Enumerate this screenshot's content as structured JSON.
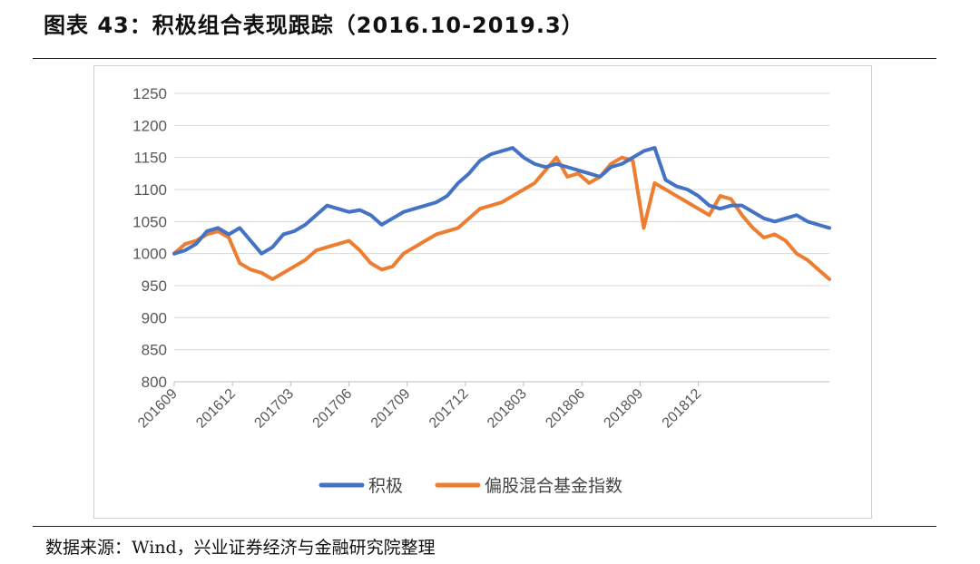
{
  "header": {
    "title": "图表 43：积极组合表现跟踪（2016.10-2019.3）"
  },
  "footer": {
    "source": "数据来源：Wind，兴业证券经济与金融研究院整理"
  },
  "chart_data": {
    "type": "line",
    "title": "",
    "xlabel": "",
    "ylabel": "",
    "ylim": [
      800,
      1250
    ],
    "yticks": [
      800,
      850,
      900,
      950,
      1000,
      1050,
      1100,
      1150,
      1200,
      1250
    ],
    "xtick_labels": [
      "201609",
      "201612",
      "201703",
      "201706",
      "201709",
      "201712",
      "201803",
      "201806",
      "201809",
      "201812"
    ],
    "x_index_range": [
      0,
      30
    ],
    "grid": "horizontal",
    "legend": "bottom",
    "x": [
      0,
      0.5,
      1,
      1.5,
      2,
      2.5,
      3,
      3.5,
      4,
      4.5,
      5,
      5.5,
      6,
      6.5,
      7,
      7.5,
      8,
      8.5,
      9,
      9.5,
      10,
      10.5,
      11,
      11.5,
      12,
      12.5,
      13,
      13.5,
      14,
      14.5,
      15,
      15.5,
      16,
      16.5,
      17,
      17.5,
      18,
      18.5,
      19,
      19.5,
      20,
      20.5,
      21,
      21.5,
      22,
      22.5,
      23,
      23.5,
      24,
      24.5,
      25,
      25.5,
      26,
      26.5,
      27,
      27.5,
      28,
      28.5,
      29,
      29.5,
      30
    ],
    "series": [
      {
        "name": "积极",
        "color": "#4472C4",
        "values": [
          1000,
          1005,
          1015,
          1035,
          1040,
          1030,
          1040,
          1020,
          1000,
          1010,
          1030,
          1035,
          1045,
          1060,
          1075,
          1070,
          1065,
          1068,
          1060,
          1045,
          1055,
          1065,
          1070,
          1075,
          1080,
          1090,
          1110,
          1125,
          1145,
          1155,
          1160,
          1165,
          1150,
          1140,
          1135,
          1140,
          1135,
          1130,
          1125,
          1120,
          1135,
          1140,
          1150,
          1160,
          1165,
          1115,
          1105,
          1100,
          1090,
          1075,
          1070,
          1075,
          1075,
          1065,
          1055,
          1050,
          1055,
          1060,
          1050,
          1045,
          1040
        ]
      },
      {
        "name": "偏股混合基金指数",
        "color": "#ED7D31",
        "values": [
          1000,
          1015,
          1020,
          1030,
          1035,
          1025,
          985,
          975,
          970,
          960,
          970,
          980,
          990,
          1005,
          1010,
          1015,
          1020,
          1005,
          985,
          975,
          980,
          1000,
          1010,
          1020,
          1030,
          1035,
          1040,
          1055,
          1070,
          1075,
          1080,
          1090,
          1100,
          1110,
          1130,
          1150,
          1120,
          1125,
          1110,
          1120,
          1140,
          1150,
          1145,
          1040,
          1110,
          1100,
          1090,
          1080,
          1070,
          1060,
          1090,
          1085,
          1060,
          1040,
          1025,
          1030,
          1020,
          1000,
          990,
          975,
          960
        ]
      }
    ]
  }
}
